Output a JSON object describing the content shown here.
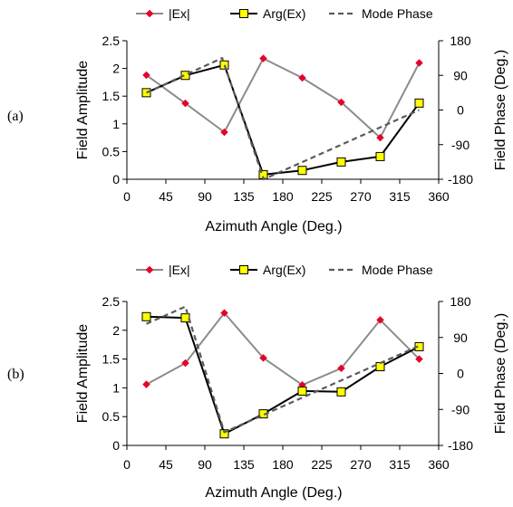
{
  "colors": {
    "amplitude_line": "#8c8c8c",
    "amplitude_marker": "#e8002a",
    "phase_line": "#000000",
    "phase_marker_fill": "#ffff00",
    "mode_phase_line": "#5a5a5a",
    "axis": "#000000"
  },
  "chart_data": [
    {
      "type": "line",
      "panel_label": "(a)",
      "title": "",
      "xlabel": "Azimuth Angle (Deg.)",
      "ylabel": "Field Amplitude",
      "y2label": "Field Phase (Deg.)",
      "xlim": [
        0,
        360
      ],
      "ylim": [
        0,
        2.5
      ],
      "y2lim": [
        -180,
        180
      ],
      "xticks": [
        "0",
        "45",
        "90",
        "135",
        "180",
        "225",
        "270",
        "315",
        "360"
      ],
      "yticks": [
        "0",
        "0.5",
        "1",
        "1.5",
        "2",
        "2.5"
      ],
      "y2ticks": [
        "-180",
        "-90",
        "0",
        "90",
        "180"
      ],
      "legend_position": "top",
      "grid": false,
      "series": [
        {
          "name": "|Ex|",
          "axis": "left",
          "marker": "diamond",
          "x": [
            22.5,
            67.5,
            112.5,
            157.5,
            202.5,
            247.5,
            292.5,
            337.5
          ],
          "y": [
            1.88,
            1.37,
            0.85,
            2.18,
            1.83,
            1.39,
            0.75,
            2.1
          ]
        },
        {
          "name": "Arg(Ex)",
          "axis": "right",
          "marker": "square",
          "x": [
            22.5,
            67.5,
            112.5,
            157.5,
            202.5,
            247.5,
            292.5,
            337.5
          ],
          "y": [
            45,
            90,
            117,
            -168,
            -157,
            -135,
            -121,
            18
          ]
        },
        {
          "name": "Mode Phase",
          "axis": "right",
          "style": "dashed",
          "x": [
            22.5,
            110,
            158,
            337.5
          ],
          "y": [
            45,
            135,
            -180,
            0
          ]
        }
      ]
    },
    {
      "type": "line",
      "panel_label": "(b)",
      "title": "",
      "xlabel": "Azimuth Angle (Deg.)",
      "ylabel": "Field Amplitude",
      "y2label": "Field Phase (Deg.)",
      "xlim": [
        0,
        360
      ],
      "ylim": [
        0,
        2.5
      ],
      "y2lim": [
        -180,
        180
      ],
      "xticks": [
        "0",
        "45",
        "90",
        "135",
        "180",
        "225",
        "270",
        "315",
        "360"
      ],
      "yticks": [
        "0",
        "0.5",
        "1",
        "1.5",
        "2",
        "2.5"
      ],
      "y2ticks": [
        "-180",
        "-90",
        "0",
        "90",
        "180"
      ],
      "legend_position": "top",
      "grid": false,
      "series": [
        {
          "name": "|Ex|",
          "axis": "left",
          "marker": "diamond",
          "x": [
            22.5,
            67.5,
            112.5,
            157.5,
            202.5,
            247.5,
            292.5,
            337.5
          ],
          "y": [
            1.06,
            1.43,
            2.3,
            1.52,
            1.05,
            1.34,
            2.18,
            1.5
          ]
        },
        {
          "name": "Arg(Ex)",
          "axis": "right",
          "marker": "square",
          "x": [
            22.5,
            67.5,
            112.5,
            157.5,
            202.5,
            247.5,
            292.5,
            337.5
          ],
          "y": [
            142,
            139,
            -151,
            -101,
            -44,
            -46,
            17,
            67
          ]
        },
        {
          "name": "Mode Phase",
          "axis": "right",
          "style": "dashed",
          "x": [
            22.5,
            67.5,
            112.5,
            337.5
          ],
          "y": [
            124,
            167,
            -147,
            69
          ]
        }
      ]
    }
  ]
}
